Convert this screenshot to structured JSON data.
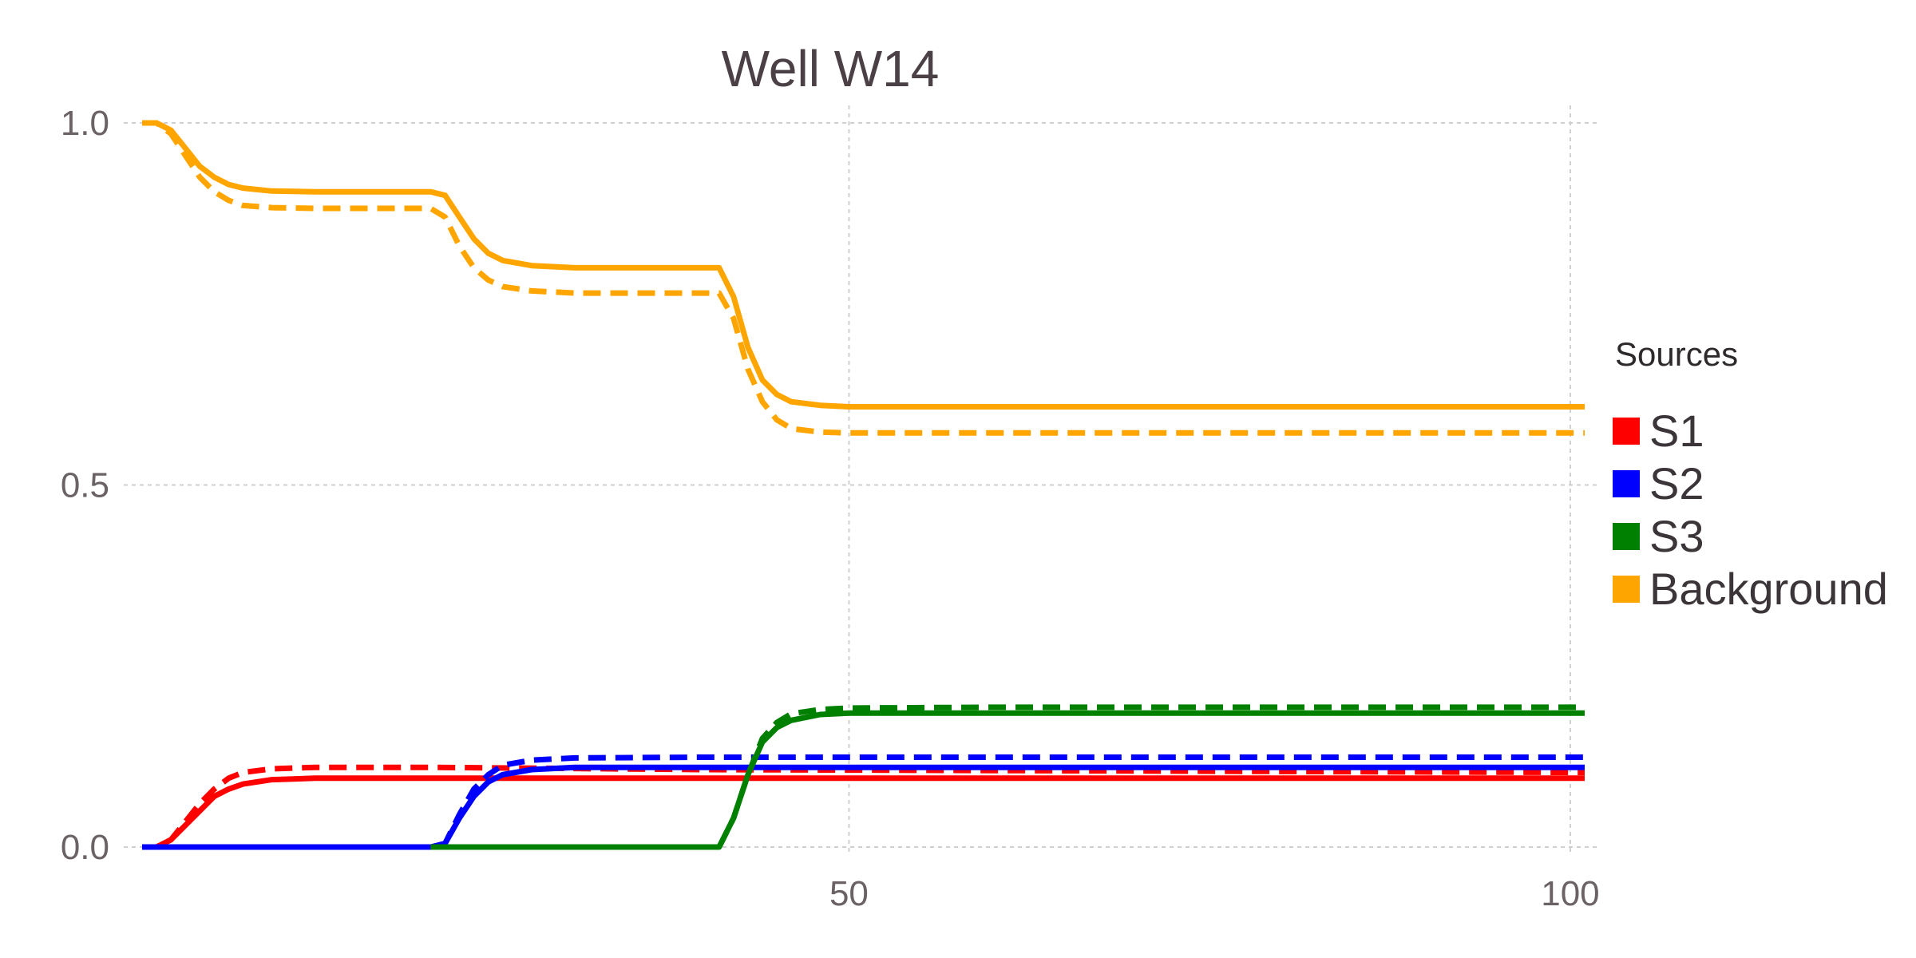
{
  "chart_data": {
    "type": "line",
    "title": "Well W14",
    "xlabel": "",
    "ylabel": "",
    "xlim": [
      1,
      101
    ],
    "ylim": [
      0,
      1
    ],
    "x_ticks": [
      50,
      100
    ],
    "y_ticks": [
      0.0,
      0.5,
      1.0
    ],
    "x_tick_labels": [
      "50",
      "100"
    ],
    "y_tick_labels": [
      "0.0",
      "0.5",
      "1.0"
    ],
    "grid": true,
    "legend": {
      "title": "Sources",
      "position": "right",
      "entries": [
        {
          "label": "S1",
          "color": "#ff0000"
        },
        {
          "label": "S2",
          "color": "#0000ff"
        },
        {
          "label": "S3",
          "color": "#008000"
        },
        {
          "label": "Background",
          "color": "#ffa500"
        }
      ]
    },
    "series": [
      {
        "source": "S1",
        "color": "#ff0000",
        "style": "solid",
        "points": [
          [
            1,
            0
          ],
          [
            2,
            0
          ],
          [
            3,
            0.01
          ],
          [
            4,
            0.03
          ],
          [
            5,
            0.05
          ],
          [
            6,
            0.07
          ],
          [
            7,
            0.08
          ],
          [
            8,
            0.087
          ],
          [
            10,
            0.093
          ],
          [
            13,
            0.095
          ],
          [
            20,
            0.095
          ],
          [
            101,
            0.095
          ]
        ]
      },
      {
        "source": "S1",
        "color": "#ff0000",
        "style": "dashed",
        "points": [
          [
            1,
            0
          ],
          [
            2,
            0
          ],
          [
            3,
            0.01
          ],
          [
            4,
            0.035
          ],
          [
            5,
            0.06
          ],
          [
            6,
            0.08
          ],
          [
            7,
            0.095
          ],
          [
            8,
            0.103
          ],
          [
            10,
            0.108
          ],
          [
            13,
            0.11
          ],
          [
            21,
            0.11
          ],
          [
            40,
            0.107
          ],
          [
            101,
            0.103
          ]
        ]
      },
      {
        "source": "S2",
        "color": "#0000ff",
        "style": "solid",
        "points": [
          [
            1,
            0
          ],
          [
            21,
            0
          ],
          [
            22,
            0.005
          ],
          [
            23,
            0.04
          ],
          [
            24,
            0.07
          ],
          [
            25,
            0.09
          ],
          [
            26,
            0.1
          ],
          [
            28,
            0.107
          ],
          [
            31,
            0.11
          ],
          [
            40,
            0.11
          ],
          [
            101,
            0.11
          ]
        ]
      },
      {
        "source": "S2",
        "color": "#0000ff",
        "style": "dashed",
        "points": [
          [
            1,
            0
          ],
          [
            21,
            0
          ],
          [
            22,
            0.005
          ],
          [
            23,
            0.045
          ],
          [
            24,
            0.08
          ],
          [
            25,
            0.1
          ],
          [
            26,
            0.113
          ],
          [
            28,
            0.12
          ],
          [
            31,
            0.123
          ],
          [
            40,
            0.124
          ],
          [
            101,
            0.124
          ]
        ]
      },
      {
        "source": "S3",
        "color": "#008000",
        "style": "solid",
        "points": [
          [
            21,
            0
          ],
          [
            41,
            0
          ],
          [
            42,
            0.04
          ],
          [
            43,
            0.1
          ],
          [
            44,
            0.145
          ],
          [
            45,
            0.165
          ],
          [
            46,
            0.175
          ],
          [
            48,
            0.183
          ],
          [
            50,
            0.185
          ],
          [
            60,
            0.185
          ],
          [
            101,
            0.185
          ]
        ]
      },
      {
        "source": "S3",
        "color": "#008000",
        "style": "dashed",
        "points": [
          [
            41,
            0
          ],
          [
            42,
            0.04
          ],
          [
            43,
            0.1
          ],
          [
            44,
            0.15
          ],
          [
            45,
            0.172
          ],
          [
            46,
            0.184
          ],
          [
            48,
            0.19
          ],
          [
            50,
            0.192
          ],
          [
            60,
            0.193
          ],
          [
            101,
            0.193
          ]
        ]
      },
      {
        "source": "Background",
        "color": "#ffa500",
        "style": "solid",
        "points": [
          [
            1,
            1
          ],
          [
            2,
            1
          ],
          [
            3,
            0.99
          ],
          [
            4,
            0.965
          ],
          [
            5,
            0.94
          ],
          [
            6,
            0.925
          ],
          [
            7,
            0.915
          ],
          [
            8,
            0.91
          ],
          [
            10,
            0.906
          ],
          [
            13,
            0.905
          ],
          [
            21,
            0.905
          ],
          [
            22,
            0.9
          ],
          [
            23,
            0.87
          ],
          [
            24,
            0.84
          ],
          [
            25,
            0.82
          ],
          [
            26,
            0.81
          ],
          [
            28,
            0.803
          ],
          [
            31,
            0.8
          ],
          [
            41,
            0.8
          ],
          [
            42,
            0.76
          ],
          [
            43,
            0.69
          ],
          [
            44,
            0.645
          ],
          [
            45,
            0.625
          ],
          [
            46,
            0.615
          ],
          [
            48,
            0.61
          ],
          [
            50,
            0.608
          ],
          [
            60,
            0.608
          ],
          [
            101,
            0.608
          ]
        ]
      },
      {
        "source": "Background",
        "color": "#ffa500",
        "style": "dashed",
        "points": [
          [
            1,
            1
          ],
          [
            2,
            1
          ],
          [
            3,
            0.985
          ],
          [
            4,
            0.955
          ],
          [
            5,
            0.925
          ],
          [
            6,
            0.905
          ],
          [
            7,
            0.893
          ],
          [
            8,
            0.886
          ],
          [
            10,
            0.883
          ],
          [
            13,
            0.882
          ],
          [
            21,
            0.882
          ],
          [
            22,
            0.87
          ],
          [
            23,
            0.83
          ],
          [
            24,
            0.8
          ],
          [
            25,
            0.783
          ],
          [
            26,
            0.774
          ],
          [
            28,
            0.768
          ],
          [
            31,
            0.765
          ],
          [
            41,
            0.765
          ],
          [
            42,
            0.73
          ],
          [
            43,
            0.66
          ],
          [
            44,
            0.615
          ],
          [
            45,
            0.59
          ],
          [
            46,
            0.578
          ],
          [
            48,
            0.573
          ],
          [
            50,
            0.572
          ],
          [
            60,
            0.572
          ],
          [
            101,
            0.572
          ]
        ]
      }
    ]
  }
}
